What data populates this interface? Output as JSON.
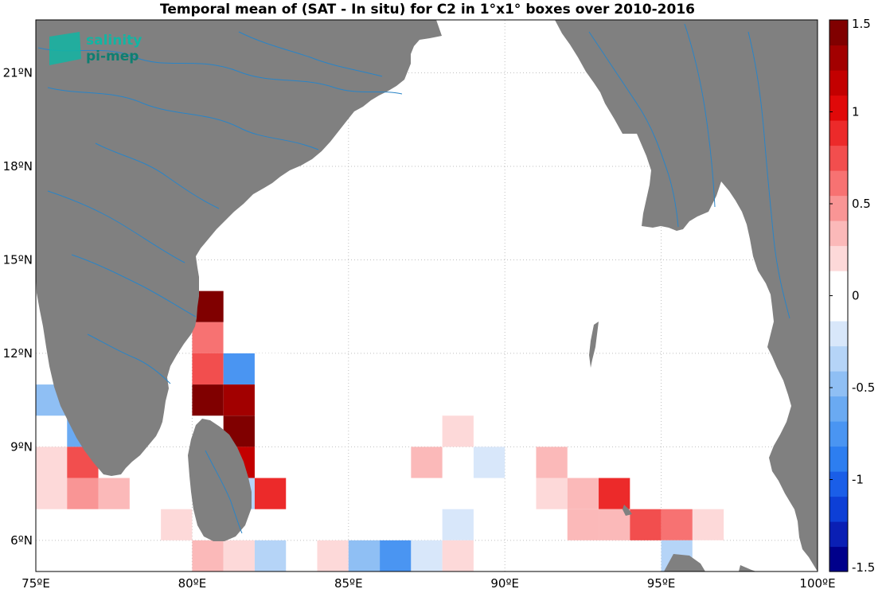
{
  "title": "Temporal mean of (SAT - In situ) for C2 in 1°x1° boxes over 2010-2016",
  "logo": {
    "line1": "salinity",
    "line2": "pi-mep"
  },
  "map": {
    "lon_range": [
      75,
      100
    ],
    "lat_range": [
      5,
      22.7
    ],
    "lon_ticks": [
      {
        "value": 75,
        "label": "75ºE"
      },
      {
        "value": 80,
        "label": "80ºE"
      },
      {
        "value": 85,
        "label": "85ºE"
      },
      {
        "value": 90,
        "label": "90ºE"
      },
      {
        "value": 95,
        "label": "95ºE"
      },
      {
        "value": 100,
        "label": "100ºE"
      }
    ],
    "lat_ticks": [
      {
        "value": 6,
        "label": "6ºN"
      },
      {
        "value": 9,
        "label": "9ºN"
      },
      {
        "value": 12,
        "label": "12ºN"
      },
      {
        "value": 15,
        "label": "15ºN"
      },
      {
        "value": 18,
        "label": "18ºN"
      },
      {
        "value": 21,
        "label": "21ºN"
      }
    ],
    "land_color": "#808080",
    "river_color": "#2a84c6",
    "grid": true
  },
  "colorbar": {
    "range": [
      -1.5,
      1.5
    ],
    "ticks": [
      {
        "value": 1.5,
        "label": "1.5"
      },
      {
        "value": 1,
        "label": "1"
      },
      {
        "value": 0.5,
        "label": "0.5"
      },
      {
        "value": 0,
        "label": "0"
      },
      {
        "value": -0.5,
        "label": "-0.5"
      },
      {
        "value": -1,
        "label": "-1"
      },
      {
        "value": -1.5,
        "label": "-1.5"
      }
    ],
    "colors": [
      "#00008b",
      "#0a1fb4",
      "#0d3fd6",
      "#1a5ee8",
      "#2d7ef0",
      "#4a95f2",
      "#6aaaf2",
      "#8fbff4",
      "#b5d4f7",
      "#d8e7fa",
      "#ffffff",
      "#ffffff",
      "#fdd9d9",
      "#fbb9b9",
      "#f99595",
      "#f77272",
      "#f24e4e",
      "#ec2a2a",
      "#e00909",
      "#c30000",
      "#a20000",
      "#800000"
    ]
  },
  "chart_data": {
    "type": "heatmap",
    "cell_size_deg": 1,
    "cells": [
      {
        "lon": 80,
        "lat": 13,
        "value": 1.5
      },
      {
        "lon": 80,
        "lat": 12,
        "value": 0.55
      },
      {
        "lon": 81,
        "lat": 12,
        "value": -0.12
      },
      {
        "lon": 80,
        "lat": 11,
        "value": 0.8
      },
      {
        "lon": 81,
        "lat": 11,
        "value": -0.7
      },
      {
        "lon": 82,
        "lat": 11,
        "value": -0.12
      },
      {
        "lon": 75,
        "lat": 10,
        "value": -0.45
      },
      {
        "lon": 80,
        "lat": 10,
        "value": 1.5
      },
      {
        "lon": 81,
        "lat": 10,
        "value": 1.3
      },
      {
        "lon": 76,
        "lat": 9,
        "value": -0.55
      },
      {
        "lon": 81,
        "lat": 9,
        "value": 1.5
      },
      {
        "lon": 88,
        "lat": 9,
        "value": 0.15
      },
      {
        "lon": 75,
        "lat": 8,
        "value": 0.15
      },
      {
        "lon": 76,
        "lat": 8,
        "value": 0.8
      },
      {
        "lon": 81,
        "lat": 8,
        "value": 1.1
      },
      {
        "lon": 87,
        "lat": 8,
        "value": 0.4
      },
      {
        "lon": 89,
        "lat": 8,
        "value": -0.22
      },
      {
        "lon": 91,
        "lat": 8,
        "value": 0.28
      },
      {
        "lon": 75,
        "lat": 7,
        "value": 0.15
      },
      {
        "lon": 76,
        "lat": 7,
        "value": 0.45
      },
      {
        "lon": 77,
        "lat": 7,
        "value": 0.28
      },
      {
        "lon": 81,
        "lat": 7,
        "value": -0.3
      },
      {
        "lon": 82,
        "lat": 7,
        "value": 0.95
      },
      {
        "lon": 91,
        "lat": 7,
        "value": 0.15
      },
      {
        "lon": 92,
        "lat": 7,
        "value": 0.4
      },
      {
        "lon": 93,
        "lat": 7,
        "value": 0.95
      },
      {
        "lon": 79,
        "lat": 6,
        "value": 0.15
      },
      {
        "lon": 88,
        "lat": 6,
        "value": -0.15
      },
      {
        "lon": 92,
        "lat": 6,
        "value": 0.28
      },
      {
        "lon": 93,
        "lat": 6,
        "value": 0.28
      },
      {
        "lon": 94,
        "lat": 6,
        "value": 0.7
      },
      {
        "lon": 95,
        "lat": 6,
        "value": 0.6
      },
      {
        "lon": 96,
        "lat": 6,
        "value": 0.15
      },
      {
        "lon": 80,
        "lat": 5,
        "value": 0.28
      },
      {
        "lon": 81,
        "lat": 5,
        "value": 0.15
      },
      {
        "lon": 82,
        "lat": 5,
        "value": -0.4
      },
      {
        "lon": 84,
        "lat": 5,
        "value": 0.15
      },
      {
        "lon": 85,
        "lat": 5,
        "value": -0.45
      },
      {
        "lon": 86,
        "lat": 5,
        "value": -0.7
      },
      {
        "lon": 87,
        "lat": 5,
        "value": -0.2
      },
      {
        "lon": 88,
        "lat": 5,
        "value": 0.15
      },
      {
        "lon": 95,
        "lat": 5,
        "value": -0.3
      },
      {
        "lon": 96,
        "lat": 5,
        "value": -0.12
      }
    ]
  }
}
